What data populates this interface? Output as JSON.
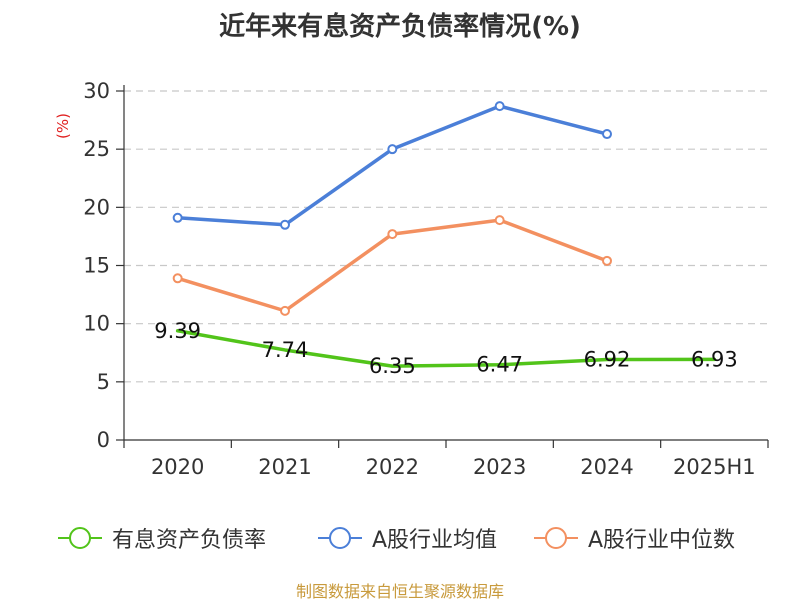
{
  "chart_data": {
    "type": "line",
    "title": "近年来有息资产负债率情况(%)",
    "ylabel": "(%)",
    "categories": [
      "2020",
      "2021",
      "2022",
      "2023",
      "2024",
      "2025H1"
    ],
    "ylim": [
      0,
      30
    ],
    "yticks": [
      "0",
      "5",
      "10",
      "15",
      "20",
      "25",
      "30"
    ],
    "grid": true,
    "legend_position": "bottom",
    "series": [
      {
        "name": "有息资产负债率",
        "color": "#52c41a",
        "values": [
          9.39,
          7.74,
          6.35,
          6.47,
          6.92,
          6.93
        ],
        "labels": [
          "9.39",
          "7.74",
          "6.35",
          "6.47",
          "6.92",
          "6.93"
        ]
      },
      {
        "name": "A股行业均值",
        "color": "#4b7fd8",
        "values": [
          19.1,
          18.5,
          25.0,
          28.7,
          26.3,
          null
        ]
      },
      {
        "name": "A股行业中位数",
        "color": "#f39060",
        "values": [
          13.9,
          11.1,
          17.7,
          18.9,
          15.4,
          null
        ]
      }
    ]
  },
  "source": "制图数据来自恒生聚源数据库"
}
